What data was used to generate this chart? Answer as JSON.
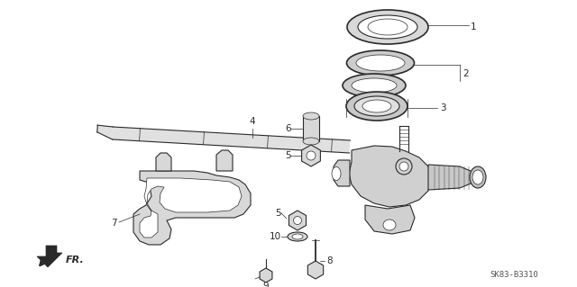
{
  "bg_color": "#ffffff",
  "line_color": "#2a2a2a",
  "label_color": "#2a2a2a",
  "figsize": [
    6.4,
    3.19
  ],
  "dpi": 100,
  "bottom_left_text": "FR.",
  "bottom_right_text": "SK83-B3310",
  "font_size_labels": 7.5,
  "font_size_corner": 6.5,
  "xlim": [
    0,
    640
  ],
  "ylim": [
    0,
    319
  ]
}
